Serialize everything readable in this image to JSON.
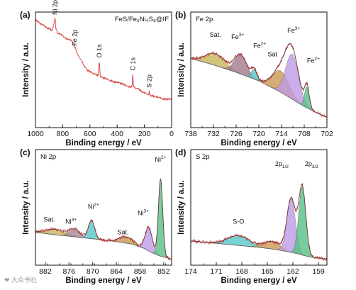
{
  "watermark": "❤ 大众书社",
  "chart_data": [
    {
      "id": "a",
      "type": "line",
      "panel_label": "(a)",
      "title": "FeS/Fe₅Ni₄S₈@IF",
      "xlabel": "Binding energy / eV",
      "ylabel": "Intensity / a.u.",
      "xlim": [
        1000,
        0
      ],
      "xticks": [
        1000,
        800,
        600,
        400,
        200,
        0
      ],
      "ylim": [
        0,
        100
      ],
      "color": "#d63b3b",
      "x": [
        1000,
        980,
        960,
        940,
        920,
        900,
        880,
        870,
        860,
        856,
        850,
        840,
        820,
        800,
        780,
        760,
        740,
        725,
        720,
        711,
        705,
        700,
        680,
        660,
        640,
        620,
        600,
        580,
        560,
        540,
        531,
        525,
        520,
        500,
        480,
        460,
        440,
        420,
        400,
        380,
        360,
        340,
        320,
        300,
        290,
        285,
        280,
        260,
        240,
        230,
        220,
        200,
        180,
        169,
        163,
        160,
        150,
        140,
        120,
        100,
        80,
        60,
        40,
        20,
        0
      ],
      "values": [
        98,
        96,
        94,
        93,
        91,
        90,
        88,
        92,
        96,
        100,
        90,
        86,
        85,
        83,
        81,
        80,
        79,
        77,
        76,
        71,
        72,
        68,
        64,
        60,
        55,
        51,
        50,
        48,
        47,
        46,
        60,
        47,
        45,
        44,
        43,
        42,
        41,
        40,
        40,
        39,
        38,
        37,
        36,
        35,
        37,
        48,
        36,
        34,
        33,
        32,
        31,
        30,
        29,
        28,
        32,
        28,
        27,
        27,
        26,
        26,
        25,
        24,
        24,
        24,
        24
      ],
      "annotations": [
        {
          "text": "Ni 2p",
          "x": 856,
          "y": 100
        },
        {
          "text": "Fe 2p",
          "x": 711,
          "y": 71
        },
        {
          "text": "O 1s",
          "x": 531,
          "y": 60
        },
        {
          "text": "C 1s",
          "x": 285,
          "y": 48
        },
        {
          "text": "S 2p",
          "x": 163,
          "y": 32
        }
      ]
    },
    {
      "id": "b",
      "type": "line",
      "panel_label": "(b)",
      "title": "Fe 2p",
      "xlabel": "Binding energy / eV",
      "ylabel": "Intensity / a.u.",
      "xlim": [
        738,
        702
      ],
      "xticks": [
        738,
        732,
        726,
        720,
        714,
        708,
        702
      ],
      "ylim": [
        0,
        100
      ],
      "background": {
        "x": [
          738,
          732,
          726,
          720,
          714,
          708,
          704,
          702
        ],
        "values": [
          62,
          56,
          49,
          41,
          30,
          17,
          10,
          7
        ]
      },
      "peaks": [
        {
          "name": "Sat.",
          "center": 731.5,
          "width": 2.6,
          "height": 11,
          "color": "#c7b45c"
        },
        {
          "name": "Fe³⁺",
          "center": 724.8,
          "width": 1.6,
          "height": 18,
          "color": "#9f7a89"
        },
        {
          "name": "Fe²⁺",
          "center": 721.3,
          "width": 0.7,
          "height": 9,
          "color": "#57c7c9"
        },
        {
          "name": "Sat.",
          "center": 714.2,
          "width": 2.2,
          "height": 20,
          "color": "#c99a52"
        },
        {
          "name": "Fe³⁺",
          "center": 711.2,
          "width": 1.7,
          "height": 42,
          "color": "#bd9be6"
        },
        {
          "name": "Fe²⁺",
          "center": 707.3,
          "width": 0.6,
          "height": 20,
          "color": "#55bf84"
        }
      ],
      "labels": [
        {
          "text": "Sat.",
          "sup": "",
          "x": 731.5,
          "y": 82
        },
        {
          "text": "Fe",
          "sup": "3+",
          "x": 725.6,
          "y": 80
        },
        {
          "text": "Fe",
          "sup": "2+",
          "x": 719.8,
          "y": 72
        },
        {
          "text": "Sat",
          "sup": "",
          "x": 716.4,
          "y": 64
        },
        {
          "text": "Fe",
          "sup": "3+",
          "x": 710.8,
          "y": 86
        },
        {
          "text": "Fe",
          "sup": "2+",
          "x": 705.6,
          "y": 58
        }
      ]
    },
    {
      "id": "c",
      "type": "line",
      "panel_label": "(c)",
      "title": "Ni 2p",
      "xlabel": "Binding energy / eV",
      "ylabel": "Intensity / a.u.",
      "xlim": [
        884.5,
        850
      ],
      "xticks": [
        882,
        876,
        870,
        864,
        858,
        852
      ],
      "ylim": [
        0,
        100
      ],
      "background": {
        "x": [
          884.5,
          880,
          875,
          870,
          865,
          860,
          857,
          855,
          853,
          851,
          850
        ],
        "values": [
          28,
          26,
          24,
          22,
          20,
          17,
          13,
          9,
          6,
          4,
          3
        ]
      },
      "peaks": [
        {
          "name": "Sat.",
          "center": 879.5,
          "width": 2.5,
          "height": 5,
          "color": "#c7b45c"
        },
        {
          "name": "Ni³⁺",
          "center": 874.6,
          "width": 1.3,
          "height": 7,
          "color": "#a48896"
        },
        {
          "name": "Ni²⁺",
          "center": 870.3,
          "width": 0.8,
          "height": 17,
          "color": "#57c7c9"
        },
        {
          "name": "Sat.",
          "center": 861.5,
          "width": 1.7,
          "height": 6,
          "color": "#c99a52"
        },
        {
          "name": "Ni³⁺",
          "center": 855.8,
          "width": 0.9,
          "height": 22,
          "color": "#bd9be6"
        },
        {
          "name": "Ni²⁺",
          "center": 852.8,
          "width": 0.55,
          "height": 72,
          "color": "#55bf84"
        }
      ],
      "labels": [
        {
          "text": "Sat.",
          "sup": "",
          "x": 881,
          "y": 38
        },
        {
          "text": "Ni",
          "sup": "3+",
          "x": 875.5,
          "y": 36
        },
        {
          "text": "Ni",
          "sup": "2+",
          "x": 869.8,
          "y": 50
        },
        {
          "text": "Sat.",
          "sup": "",
          "x": 862.3,
          "y": 26
        },
        {
          "text": "Ni",
          "sup": "3+",
          "x": 857.2,
          "y": 44
        },
        {
          "text": "Ni",
          "sup": "2+",
          "x": 852.8,
          "y": 94
        }
      ]
    },
    {
      "id": "d",
      "type": "line",
      "panel_label": "(d)",
      "title": "S 2p",
      "xlabel": "Binding energy / eV",
      "ylabel": "Intensity / a.u.",
      "xlim": [
        174,
        158
      ],
      "xticks": [
        174,
        171,
        168,
        165,
        162,
        159
      ],
      "ylim": [
        0,
        100
      ],
      "background": {
        "x": [
          174,
          170,
          166,
          164,
          162,
          160,
          158
        ],
        "values": [
          20,
          17,
          14,
          12,
          9,
          5,
          3
        ]
      },
      "peaks": [
        {
          "name": "S-O",
          "center": 168.4,
          "width": 1.3,
          "height": 9,
          "color": "#57c7c9"
        },
        {
          "name": "Sat.",
          "center": 164.4,
          "width": 1.0,
          "height": 7,
          "color": "#c99a52"
        },
        {
          "name": "2p1/2",
          "center": 162.2,
          "width": 0.5,
          "height": 50,
          "color": "#bd9be6"
        },
        {
          "name": "2p3/2",
          "center": 160.9,
          "width": 0.42,
          "height": 64,
          "color": "#55bf84"
        }
      ],
      "labels": [
        {
          "text": "S-O",
          "sup": "",
          "x": 168.4,
          "y": 36
        },
        {
          "text": "2p",
          "sub": "1/2",
          "x": 163.3,
          "y": 90
        },
        {
          "text": "2p",
          "sub": "3/2",
          "x": 159.8,
          "y": 90
        }
      ]
    }
  ]
}
